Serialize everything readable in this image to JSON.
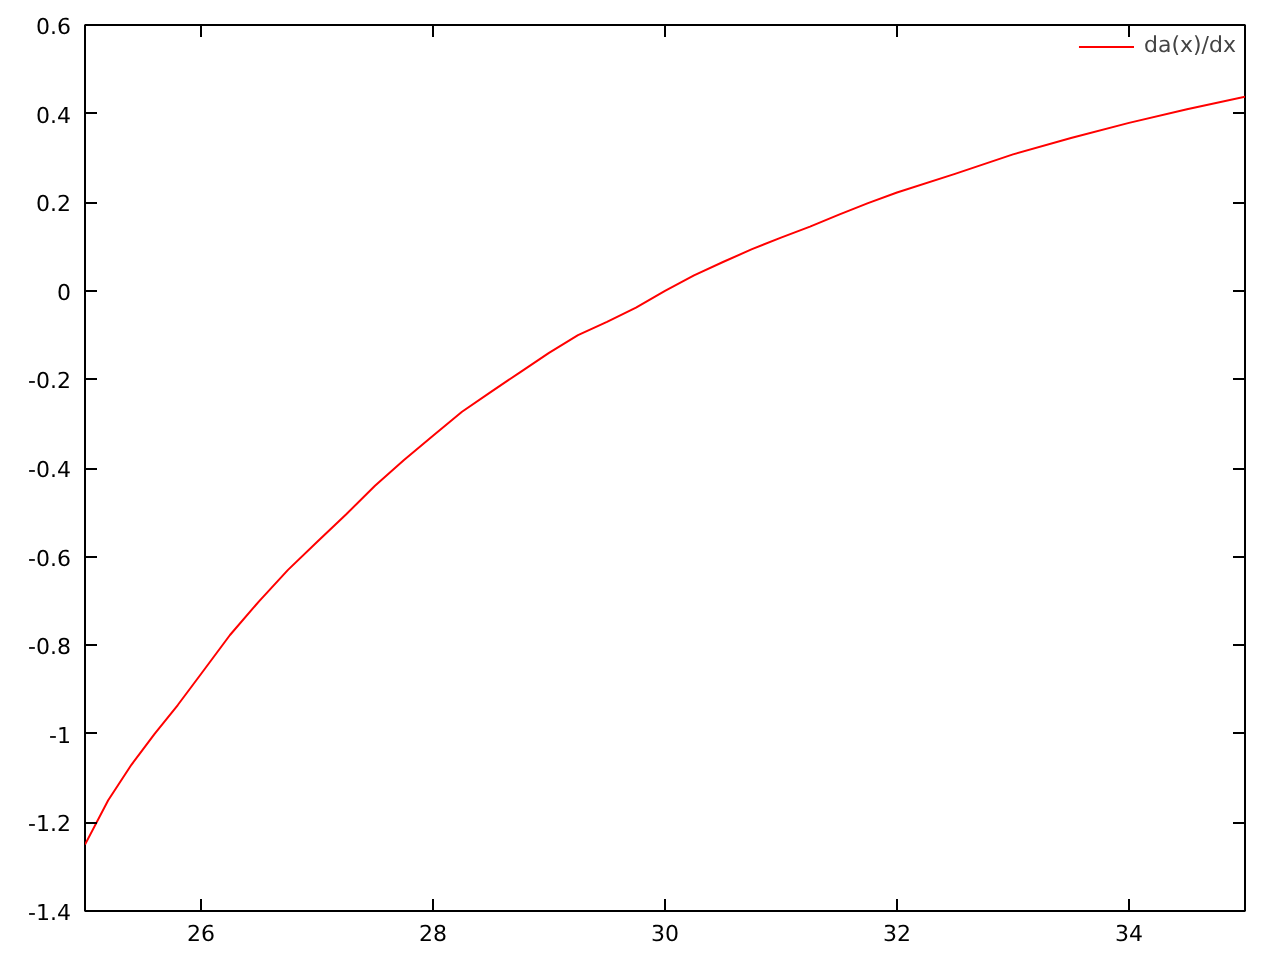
{
  "chart_data": {
    "type": "line",
    "xlim": [
      25,
      35
    ],
    "xticks": [
      26,
      28,
      30,
      32,
      34
    ],
    "ylim": [
      -1.4,
      0.6
    ],
    "yticks": [
      -1.4,
      -1.2,
      -1,
      -0.8,
      -0.6,
      -0.4,
      -0.2,
      0,
      0.2,
      0.4,
      0.6
    ],
    "grid": false,
    "legend": "top right",
    "line_style": "solid",
    "series": [
      {
        "name": "da(x)/dx",
        "color": "#ff0000",
        "x": [
          25.0,
          25.2,
          25.4,
          25.6,
          25.8,
          26.0,
          26.25,
          26.5,
          26.75,
          27.0,
          27.25,
          27.5,
          27.75,
          28.0,
          28.25,
          28.5,
          28.75,
          29.0,
          29.25,
          29.5,
          29.75,
          30.0,
          30.25,
          30.5,
          30.75,
          31.0,
          31.25,
          31.5,
          31.75,
          32.0,
          32.5,
          33.0,
          33.5,
          34.0,
          34.5,
          35.0
        ],
        "values": [
          -1.25,
          -1.15,
          -1.07,
          -1.0,
          -0.935,
          -0.865,
          -0.777,
          -0.701,
          -0.63,
          -0.567,
          -0.505,
          -0.44,
          -0.382,
          -0.327,
          -0.273,
          -0.228,
          -0.184,
          -0.14,
          -0.1,
          -0.07,
          -0.038,
          0.0,
          0.035,
          0.065,
          0.094,
          0.12,
          0.145,
          0.172,
          0.198,
          0.222,
          0.264,
          0.308,
          0.345,
          0.379,
          0.41,
          0.438
        ]
      }
    ]
  }
}
